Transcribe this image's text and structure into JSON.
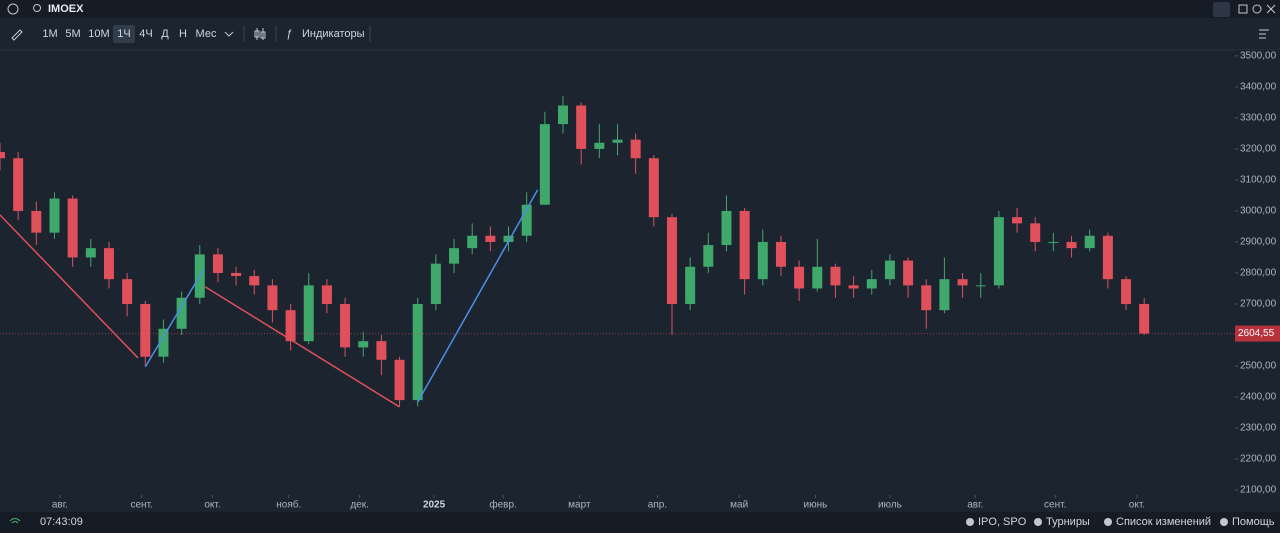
{
  "header": {
    "symbol": "IMOEX"
  },
  "toolbar": {
    "intervals": [
      "1М",
      "5М",
      "10М",
      "1Ч",
      "4Ч",
      "Д",
      "Н",
      "Мес"
    ],
    "active": "1Ч",
    "indicators": "Индикаторы"
  },
  "status": {
    "time": "07:43:09",
    "links": [
      "IPO, SPO",
      "Турниры",
      "Список изменений",
      "Помощь"
    ]
  },
  "chart_data": {
    "type": "candlestick",
    "up_color": "#3fa86a",
    "down_color": "#e0505a",
    "x": [
      0,
      1,
      2,
      3,
      4,
      5,
      6,
      7,
      8,
      9,
      10,
      11,
      12,
      13,
      14,
      15,
      16,
      17,
      18,
      19,
      20,
      21,
      22,
      23,
      24,
      25,
      26,
      27,
      28,
      29,
      30,
      31,
      32,
      33,
      34,
      35,
      36,
      37,
      38,
      39,
      40,
      41,
      42,
      43,
      44,
      45,
      46,
      47,
      48,
      49,
      50,
      51,
      52,
      53,
      54,
      55,
      56,
      57,
      58,
      59,
      60,
      61,
      62,
      63
    ],
    "open": [
      3190,
      3170,
      3000,
      2930,
      3040,
      2850,
      2880,
      2780,
      2700,
      2530,
      2620,
      2720,
      2860,
      2800,
      2790,
      2760,
      2680,
      2580,
      2760,
      2700,
      2560,
      2580,
      2520,
      2390,
      2700,
      2830,
      2880,
      2920,
      2900,
      2920,
      3020,
      3280,
      3340,
      3200,
      3220,
      3230,
      3170,
      2980,
      2700,
      2820,
      2890,
      3000,
      2780,
      2900,
      2820,
      2750,
      2820,
      2760,
      2750,
      2780,
      2840,
      2760,
      2680,
      2780,
      2760,
      2760,
      2980,
      2960,
      2900,
      2900,
      2880,
      2920,
      2780,
      2700
    ],
    "high": [
      3220,
      3190,
      3030,
      3060,
      3050,
      2910,
      2900,
      2800,
      2710,
      2650,
      2740,
      2890,
      2880,
      2820,
      2810,
      2780,
      2700,
      2800,
      2780,
      2720,
      2610,
      2600,
      2530,
      2720,
      2860,
      2910,
      2960,
      2950,
      2950,
      3060,
      3320,
      3370,
      3350,
      3280,
      3280,
      3250,
      3180,
      2990,
      2850,
      2930,
      3050,
      3010,
      2940,
      2920,
      2840,
      2910,
      2830,
      2790,
      2810,
      2860,
      2850,
      2780,
      2850,
      2800,
      2800,
      3000,
      3010,
      2980,
      2930,
      2920,
      2940,
      2930,
      2790,
      2720
    ],
    "low": [
      3130,
      2970,
      2890,
      2910,
      2820,
      2820,
      2750,
      2660,
      2500,
      2510,
      2600,
      2700,
      2770,
      2760,
      2730,
      2640,
      2550,
      2570,
      2670,
      2530,
      2530,
      2470,
      2370,
      2370,
      2680,
      2800,
      2860,
      2870,
      2870,
      2900,
      3020,
      3250,
      3150,
      3170,
      3180,
      3120,
      2950,
      2600,
      2680,
      2800,
      2870,
      2730,
      2760,
      2790,
      2710,
      2740,
      2720,
      2720,
      2730,
      2760,
      2720,
      2620,
      2670,
      2720,
      2720,
      2750,
      2930,
      2870,
      2870,
      2850,
      2870,
      2750,
      2680,
      2600
    ],
    "close": [
      3170,
      3000,
      2930,
      3040,
      2850,
      2880,
      2780,
      2700,
      2530,
      2620,
      2720,
      2860,
      2800,
      2790,
      2760,
      2680,
      2580,
      2760,
      2700,
      2560,
      2580,
      2520,
      2390,
      2700,
      2830,
      2880,
      2920,
      2900,
      2920,
      3020,
      3280,
      3340,
      3200,
      3220,
      3230,
      3170,
      2980,
      2700,
      2820,
      2890,
      3000,
      2780,
      2900,
      2820,
      2750,
      2820,
      2760,
      2750,
      2780,
      2840,
      2760,
      2680,
      2780,
      2760,
      2760,
      2980,
      2960,
      2900,
      2900,
      2880,
      2920,
      2780,
      2700,
      2604.55
    ],
    "current_price": {
      "value": 2604.55,
      "label": "2604,55"
    },
    "xlim": [
      0,
      68
    ],
    "xticks": [
      {
        "value": 3.3,
        "label": "авг."
      },
      {
        "value": 7.8,
        "label": "сент."
      },
      {
        "value": 11.7,
        "label": "окт."
      },
      {
        "value": 15.9,
        "label": "нояб."
      },
      {
        "value": 19.8,
        "label": "дек."
      },
      {
        "value": 23.9,
        "label": "2025"
      },
      {
        "value": 27.7,
        "label": "февр."
      },
      {
        "value": 31.9,
        "label": "март"
      },
      {
        "value": 36.2,
        "label": "апр."
      },
      {
        "value": 40.7,
        "label": "май"
      },
      {
        "value": 44.9,
        "label": "июнь"
      },
      {
        "value": 49.0,
        "label": "июль"
      },
      {
        "value": 53.7,
        "label": "авг."
      },
      {
        "value": 58.1,
        "label": "сент."
      },
      {
        "value": 62.6,
        "label": "окт."
      }
    ],
    "ylim": [
      2084,
      3519
    ],
    "yticks": [
      {
        "value": 2100,
        "label": "2100,00"
      },
      {
        "value": 2200,
        "label": "2200,00"
      },
      {
        "value": 2300,
        "label": "2300,00"
      },
      {
        "value": 2400,
        "label": "2400,00"
      },
      {
        "value": 2500,
        "label": "2500,00"
      },
      {
        "value": 2600,
        "label": "2600,00"
      },
      {
        "value": 2700,
        "label": "2700,00"
      },
      {
        "value": 2800,
        "label": "2800,00"
      },
      {
        "value": 2900,
        "label": "2900,00"
      },
      {
        "value": 3000,
        "label": "3000,00"
      },
      {
        "value": 3100,
        "label": "3100,00"
      },
      {
        "value": 3200,
        "label": "3200,00"
      },
      {
        "value": 3300,
        "label": "3300,00"
      },
      {
        "value": 3400,
        "label": "3400,00"
      },
      {
        "value": 3500,
        "label": "3500,00"
      }
    ],
    "trend_lines": [
      {
        "color": "#e0505a",
        "x": [
          0,
          7.6
        ],
        "y": [
          2987,
          2526
        ]
      },
      {
        "color": "#4a8fe8",
        "x": [
          8.0,
          11.2
        ],
        "y": [
          2497,
          2810
        ]
      },
      {
        "color": "#e0505a",
        "x": [
          11.3,
          22.0
        ],
        "y": [
          2755,
          2368
        ]
      },
      {
        "color": "#4a8fe8",
        "x": [
          23.0,
          29.6
        ],
        "y": [
          2384,
          3068
        ]
      }
    ]
  }
}
